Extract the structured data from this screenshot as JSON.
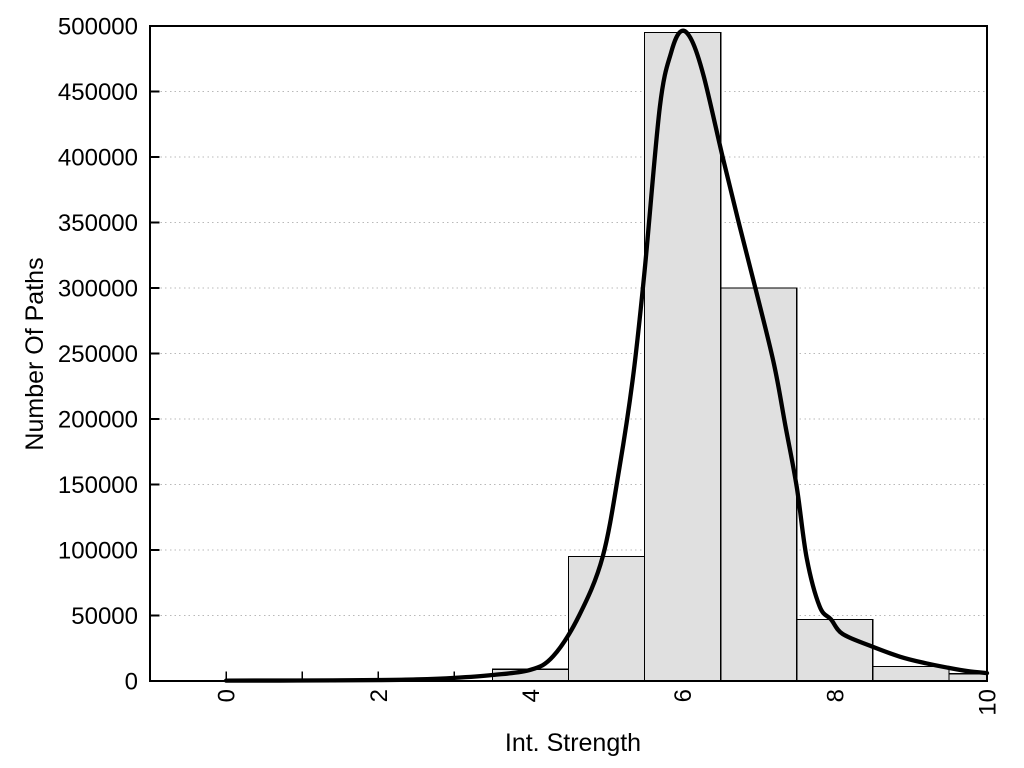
{
  "chart_data": {
    "type": "histogram+line",
    "title": "",
    "xlabel": "Int. Strength",
    "ylabel": "Number Of Paths",
    "xlim": [
      -1,
      10
    ],
    "ylim": [
      0,
      500000
    ],
    "legend": "none",
    "grid": {
      "horizontal": true,
      "vertical": false,
      "style": "dotted"
    },
    "x_axis": {
      "major_tick_values": [
        0,
        2,
        4,
        6,
        8,
        10
      ],
      "major_tick_labels": [
        "0",
        "2",
        "4",
        "6",
        "8",
        "10"
      ],
      "minor_tick_values": [
        1,
        3,
        5,
        7,
        9
      ],
      "tick_label_rotation_deg": -90
    },
    "y_axis": {
      "tick_values": [
        0,
        50000,
        100000,
        150000,
        200000,
        250000,
        300000,
        350000,
        400000,
        450000,
        500000
      ],
      "tick_labels": [
        "0",
        "50000",
        "100000",
        "150000",
        "200000",
        "250000",
        "300000",
        "350000",
        "400000",
        "450000",
        "500000"
      ],
      "gridline_values": [
        50000,
        100000,
        150000,
        200000,
        250000,
        300000,
        350000,
        400000,
        450000
      ]
    },
    "histogram": {
      "bin_width": 1,
      "bin_centers": [
        4,
        5,
        6,
        7,
        8,
        9,
        10
      ],
      "counts": [
        9000,
        95000,
        495000,
        300000,
        47000,
        11000,
        5500
      ],
      "clipped_at_xmax": true
    },
    "density_curve": {
      "points": [
        [
          0,
          300
        ],
        [
          0.7,
          350
        ],
        [
          1.4,
          450
        ],
        [
          2,
          700
        ],
        [
          2.5,
          1200
        ],
        [
          3,
          2400
        ],
        [
          3.5,
          4600
        ],
        [
          4,
          8500
        ],
        [
          4.3,
          19000
        ],
        [
          4.64,
          50000
        ],
        [
          4.95,
          95000
        ],
        [
          5.17,
          163000
        ],
        [
          5.35,
          233000
        ],
        [
          5.5,
          313000
        ],
        [
          5.7,
          438000
        ],
        [
          5.85,
          480000
        ],
        [
          5.98,
          496000
        ],
        [
          6.12,
          489000
        ],
        [
          6.28,
          461000
        ],
        [
          6.53,
          399000
        ],
        [
          6.75,
          347000
        ],
        [
          6.96,
          299000
        ],
        [
          7.2,
          242000
        ],
        [
          7.35,
          195000
        ],
        [
          7.5,
          148000
        ],
        [
          7.63,
          94000
        ],
        [
          7.8,
          57000
        ],
        [
          7.95,
          47000
        ],
        [
          8.1,
          36000
        ],
        [
          8.46,
          27000
        ],
        [
          8.86,
          18500
        ],
        [
          9.2,
          13500
        ],
        [
          9.5,
          10000
        ],
        [
          9.75,
          7500
        ],
        [
          10,
          6000
        ]
      ]
    },
    "colors": {
      "background": "#ffffff",
      "bar_fill": "#e0e0e0",
      "bar_border": "#000000",
      "curve": "#000000",
      "axis": "#000000",
      "grid": "#b9b9b9",
      "text": "#000000"
    }
  }
}
